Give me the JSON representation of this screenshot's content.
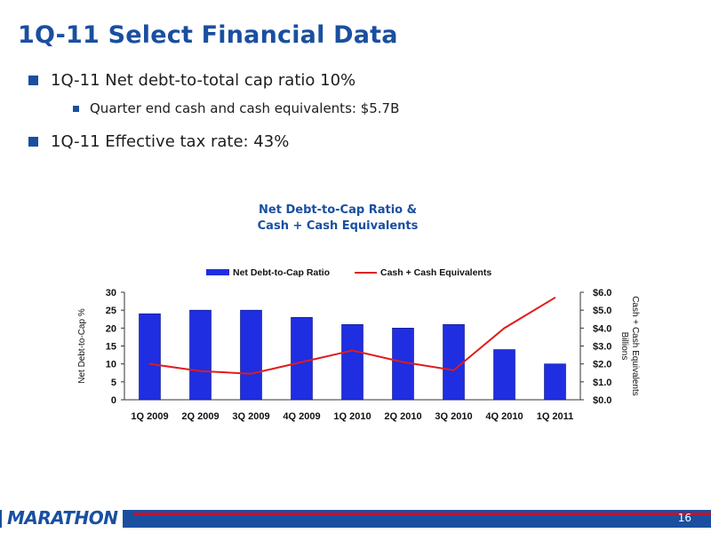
{
  "slide": {
    "title": "1Q-11 Select Financial Data",
    "page_number": "16",
    "logo_text": "MARATHON",
    "bullets": [
      {
        "text": "1Q-11 Net debt-to-total cap ratio 10%"
      },
      {
        "text": "Quarter end cash and cash equivalents:  $5.7B"
      },
      {
        "text": "1Q-11 Effective tax rate:  43%"
      }
    ]
  },
  "colors": {
    "brand_blue": "#1a4fa0",
    "bar_blue": "#1f2ee0",
    "line_red": "#e01b1b"
  },
  "chart_data": {
    "type": "bar",
    "title_line1": "Net Debt-to-Cap Ratio &",
    "title_line2": "Cash + Cash Equivalents",
    "categories": [
      "1Q 2009",
      "2Q 2009",
      "3Q 2009",
      "4Q 2009",
      "1Q 2010",
      "2Q 2010",
      "3Q 2010",
      "4Q 2010",
      "1Q 2011"
    ],
    "series": [
      {
        "name": "Net Debt-to-Cap Ratio",
        "type": "bar",
        "axis": "left",
        "values": [
          24,
          25,
          25,
          23,
          21,
          20,
          21,
          14,
          10
        ]
      },
      {
        "name": "Cash + Cash Equivalents",
        "type": "line",
        "axis": "right",
        "values": [
          2.0,
          1.6,
          1.45,
          2.1,
          2.75,
          2.1,
          1.65,
          4.0,
          5.7
        ]
      }
    ],
    "ylabel_left": "Net Debt-to-Cap %",
    "ylabel_right_line1": "Cash + Cash Equivalents",
    "ylabel_right_line2": "Billions",
    "ylim_left": [
      0,
      30
    ],
    "ylim_right": [
      0,
      6
    ],
    "yticks_left": [
      "0",
      "5",
      "10",
      "15",
      "20",
      "25",
      "30"
    ],
    "yticks_right": [
      "$0.0",
      "$1.0",
      "$2.0",
      "$3.0",
      "$4.0",
      "$5.0",
      "$6.0"
    ],
    "grid": false,
    "legend_position": "top"
  }
}
